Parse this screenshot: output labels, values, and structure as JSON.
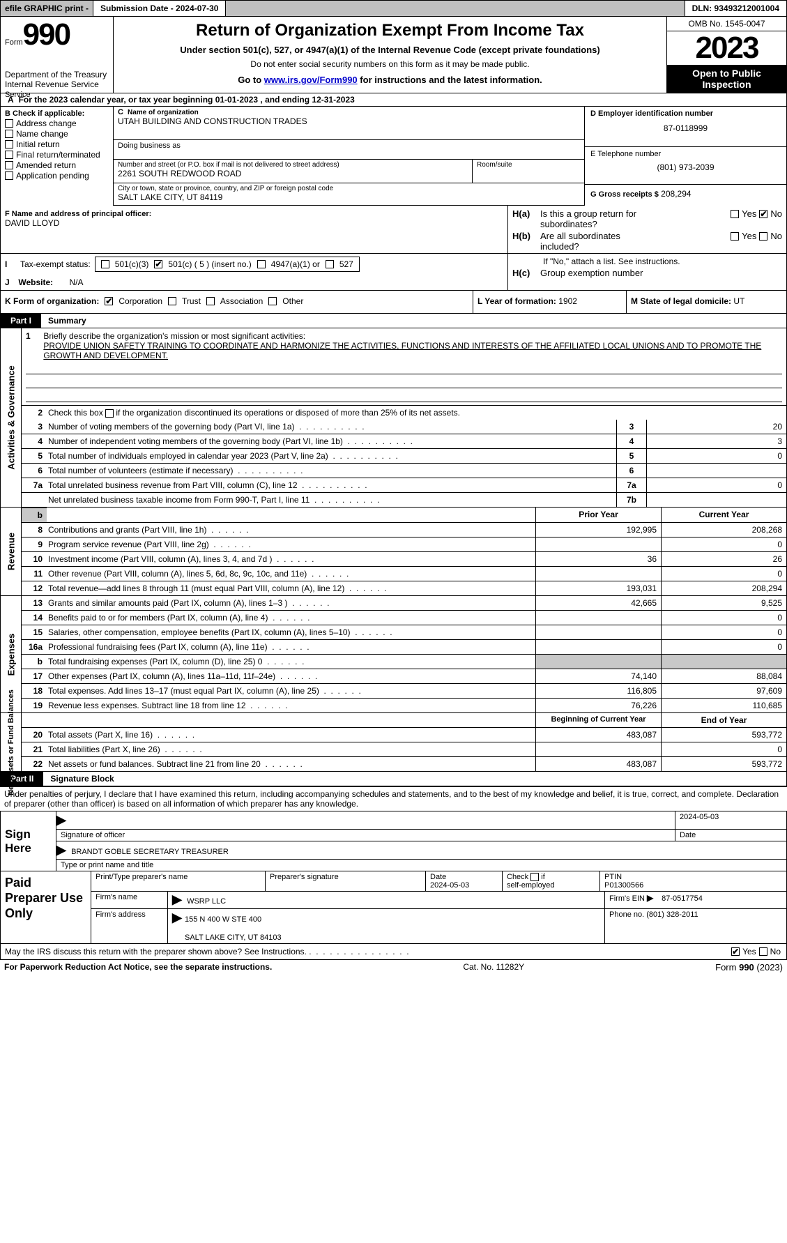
{
  "topbar": {
    "efile": "efile GRAPHIC print -",
    "submission": "Submission Date - 2024-07-30",
    "dln": "DLN: 93493212001004"
  },
  "header": {
    "form_word": "Form",
    "form_num": "990",
    "title": "Return of Organization Exempt From Income Tax",
    "sub1": "Under section 501(c), 527, or 4947(a)(1) of the Internal Revenue Code (except private foundations)",
    "sub2": "Do not enter social security numbers on this form as it may be made public.",
    "sub3_prefix": "Go to ",
    "sub3_link": "www.irs.gov/Form990",
    "sub3_suffix": " for instructions and the latest information.",
    "dept": "Department of the Treasury",
    "irs": "Internal Revenue Service",
    "omb": "OMB No. 1545-0047",
    "year": "2023",
    "open1": "Open to Public",
    "open2": "Inspection"
  },
  "section_a": "For the 2023 calendar year, or tax year beginning 01-01-2023    , and ending 12-31-2023",
  "section_a_a": "A",
  "col_b": {
    "head": "B Check if applicable:",
    "items": [
      "Address change",
      "Name change",
      "Initial return",
      "Final return/terminated",
      "Amended return",
      "Application pending"
    ]
  },
  "col_c": {
    "c_letter": "C",
    "name_lbl": "Name of organization",
    "name_val": "UTAH BUILDING AND CONSTRUCTION TRADES",
    "dba_lbl": "Doing business as",
    "addr_lbl": "Number and street (or P.O. box if mail is not delivered to street address)",
    "addr_val": "2261 SOUTH REDWOOD ROAD",
    "room_lbl": "Room/suite",
    "city_lbl": "City or town, state or province, country, and ZIP or foreign postal code",
    "city_val": "SALT LAKE CITY, UT  84119"
  },
  "col_d": {
    "d_lbl": "D Employer identification number",
    "d_val": "87-0118999",
    "e_lbl": "E Telephone number",
    "e_val": "(801) 973-2039",
    "g_lbl": "G Gross receipts $",
    "g_val": "208,294"
  },
  "fh": {
    "f_lbl": "F Name and address of principal officer:",
    "f_val": "DAVID LLOYD",
    "ha_key": "H(a)",
    "ha_txt1": "Is this a group return for",
    "ha_txt2": "subordinates?",
    "hb_key": "H(b)",
    "hb_txt1": "Are all subordinates",
    "hb_txt2": "included?",
    "if_no": "If \"No,\" attach a list. See instructions.",
    "hc_key": "H(c)",
    "hc_txt": "Group exemption number",
    "yes": "Yes",
    "no": "No"
  },
  "ij": {
    "i_lbl": "Tax-exempt status:",
    "s1": "501(c)(3)",
    "s2": "501(c) ( 5 ) (insert no.)",
    "s3": "4947(a)(1) or",
    "s4": "527",
    "j_lbl": "Website:",
    "j_val": "N/A",
    "i_letter": "I",
    "j_letter": "J"
  },
  "klm": {
    "k_lbl": "K Form of organization:",
    "k1": "Corporation",
    "k2": "Trust",
    "k3": "Association",
    "k4": "Other",
    "l_lbl": "L Year of formation:",
    "l_val": "1902",
    "m_lbl": "M State of legal domicile:",
    "m_val": "UT"
  },
  "part1": {
    "label": "Part I",
    "title": "Summary"
  },
  "vlabels": {
    "gov": "Activities & Governance",
    "rev": "Revenue",
    "exp": "Expenses",
    "net": "Net Assets or Fund Balances"
  },
  "mission": {
    "num": "1",
    "lbl": "Briefly describe the organization's mission or most significant activities:",
    "text": "PROVIDE UNION SAFETY TRAINING TO COORDINATE AND HARMONIZE THE ACTIVITIES, FUNCTIONS AND INTERESTS OF THE AFFILIATED LOCAL UNIONS AND TO PROMOTE THE GROWTH AND DEVELOPMENT."
  },
  "line2": {
    "num": "2",
    "txt": "Check this box        if the organization discontinued its operations or disposed of more than 25% of its net assets."
  },
  "gov_rows": [
    {
      "num": "3",
      "lbl": "Number of voting members of the governing body (Part VI, line 1a)",
      "idx": "3",
      "val": "20"
    },
    {
      "num": "4",
      "lbl": "Number of independent voting members of the governing body (Part VI, line 1b)",
      "idx": "4",
      "val": "3"
    },
    {
      "num": "5",
      "lbl": "Total number of individuals employed in calendar year 2023 (Part V, line 2a)",
      "idx": "5",
      "val": "0"
    },
    {
      "num": "6",
      "lbl": "Total number of volunteers (estimate if necessary)",
      "idx": "6",
      "val": ""
    },
    {
      "num": "7a",
      "lbl": "Total unrelated business revenue from Part VIII, column (C), line 12",
      "idx": "7a",
      "val": "0"
    },
    {
      "num": "",
      "lbl": "Net unrelated business taxable income from Form 990-T, Part I, line 11",
      "idx": "7b",
      "val": ""
    }
  ],
  "headers2": {
    "prior": "Prior Year",
    "curr": "Current Year"
  },
  "rev_rows": [
    {
      "num": "8",
      "lbl": "Contributions and grants (Part VIII, line 1h)",
      "prior": "192,995",
      "curr": "208,268"
    },
    {
      "num": "9",
      "lbl": "Program service revenue (Part VIII, line 2g)",
      "prior": "",
      "curr": "0"
    },
    {
      "num": "10",
      "lbl": "Investment income (Part VIII, column (A), lines 3, 4, and 7d )",
      "prior": "36",
      "curr": "26"
    },
    {
      "num": "11",
      "lbl": "Other revenue (Part VIII, column (A), lines 5, 6d, 8c, 9c, 10c, and 11e)",
      "prior": "",
      "curr": "0"
    },
    {
      "num": "12",
      "lbl": "Total revenue—add lines 8 through 11 (must equal Part VIII, column (A), line 12)",
      "prior": "193,031",
      "curr": "208,294"
    }
  ],
  "exp_rows": [
    {
      "num": "13",
      "lbl": "Grants and similar amounts paid (Part IX, column (A), lines 1–3 )",
      "prior": "42,665",
      "curr": "9,525"
    },
    {
      "num": "14",
      "lbl": "Benefits paid to or for members (Part IX, column (A), line 4)",
      "prior": "",
      "curr": "0"
    },
    {
      "num": "15",
      "lbl": "Salaries, other compensation, employee benefits (Part IX, column (A), lines 5–10)",
      "prior": "",
      "curr": "0"
    },
    {
      "num": "16a",
      "lbl": "Professional fundraising fees (Part IX, column (A), line 11e)",
      "prior": "",
      "curr": "0"
    },
    {
      "num": "b",
      "lbl": "Total fundraising expenses (Part IX, column (D), line 25) 0",
      "prior": "__GREY__",
      "curr": "__GREY__"
    },
    {
      "num": "17",
      "lbl": "Other expenses (Part IX, column (A), lines 11a–11d, 11f–24e)",
      "prior": "74,140",
      "curr": "88,084"
    },
    {
      "num": "18",
      "lbl": "Total expenses. Add lines 13–17 (must equal Part IX, column (A), line 25)",
      "prior": "116,805",
      "curr": "97,609"
    },
    {
      "num": "19",
      "lbl": "Revenue less expenses. Subtract line 18 from line 12",
      "prior": "76,226",
      "curr": "110,685"
    }
  ],
  "net_head": {
    "prior": "Beginning of Current Year",
    "curr": "End of Year"
  },
  "net_rows": [
    {
      "num": "20",
      "lbl": "Total assets (Part X, line 16)",
      "prior": "483,087",
      "curr": "593,772"
    },
    {
      "num": "21",
      "lbl": "Total liabilities (Part X, line 26)",
      "prior": "",
      "curr": "0"
    },
    {
      "num": "22",
      "lbl": "Net assets or fund balances. Subtract line 21 from line 20",
      "prior": "483,087",
      "curr": "593,772"
    }
  ],
  "part2": {
    "label": "Part II",
    "title": "Signature Block"
  },
  "sig": {
    "intro": "Under penalties of perjury, I declare that I have examined this return, including accompanying schedules and statements, and to the best of my knowledge and belief, it is true, correct, and complete. Declaration of preparer (other than officer) is based on all information of which preparer has any knowledge.",
    "sign_here": "Sign Here",
    "sig_officer_lbl": "Signature of officer",
    "date_lbl": "Date",
    "date_val": "2024-05-03",
    "officer_name": "BRANDT GOBLE  SECRETARY TREASURER",
    "type_lbl": "Type or print name and title"
  },
  "prep": {
    "label": "Paid Preparer Use Only",
    "r1": {
      "c1": "Print/Type preparer's name",
      "c2": "Preparer's signature",
      "c3_lbl": "Date",
      "c3_val": "2024-05-03",
      "c4_lbl": "Check         if self-employed",
      "c5_lbl": "PTIN",
      "c5_val": "P01300566"
    },
    "r2": {
      "lbl": "Firm's name",
      "val": "WSRP LLC",
      "ein_lbl": "Firm's EIN",
      "ein_val": "87-0517754"
    },
    "r3": {
      "lbl": "Firm's address",
      "val1": "155 N 400 W STE 400",
      "val2": "SALT LAKE CITY, UT  84103",
      "ph_lbl": "Phone no.",
      "ph_val": "(801) 328-2011"
    }
  },
  "irs_q": "May the IRS discuss this return with the preparer shown above? See Instructions.",
  "footer": {
    "left": "For Paperwork Reduction Act Notice, see the separate instructions.",
    "mid": "Cat. No. 11282Y",
    "right": "Form 990 (2023)"
  }
}
